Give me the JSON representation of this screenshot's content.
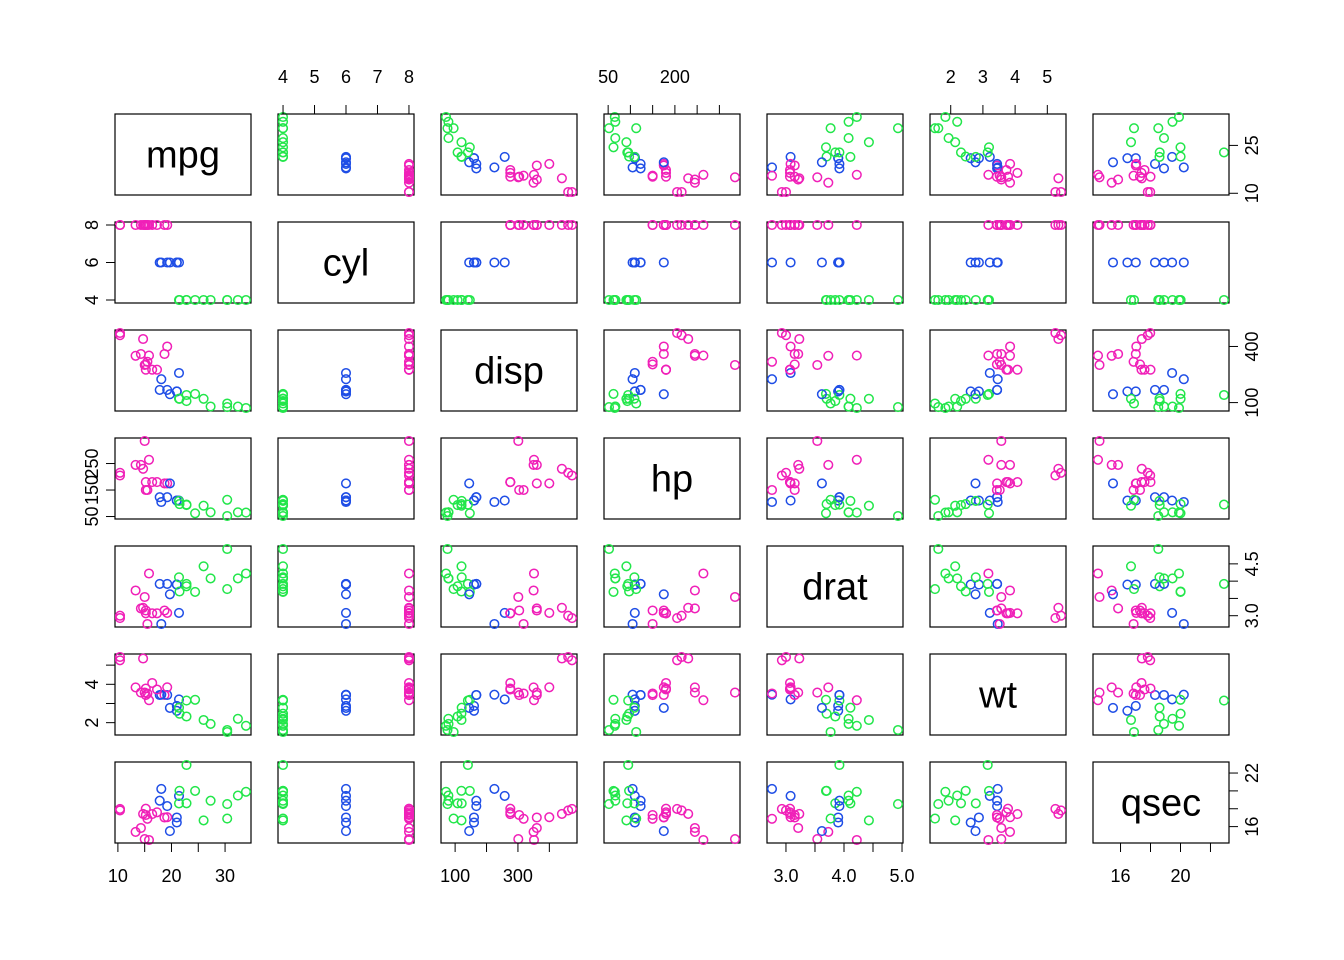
{
  "chart_data": {
    "type": "scatter",
    "subtype": "pairs",
    "grid": false,
    "legend": "none",
    "point_shape": "open-circle",
    "group_field": "cyl",
    "group_colors": {
      "4": "#22e64a",
      "6": "#1f4ee6",
      "8": "#f020b8"
    },
    "variables": [
      {
        "name": "mpg",
        "range": [
          10.4,
          33.9
        ],
        "ticks": [
          10,
          15,
          20,
          25,
          30
        ],
        "tick_labels": [
          "10",
          "",
          "20",
          "",
          "30"
        ],
        "alt_ticks": [
          10,
          25
        ],
        "alt_tick_labels": [
          "10",
          "25"
        ]
      },
      {
        "name": "cyl",
        "range": [
          4,
          8
        ],
        "ticks": [
          4,
          5,
          6,
          7,
          8
        ],
        "tick_labels": [
          "4",
          "5",
          "6",
          "7",
          "8"
        ],
        "alt_ticks": [
          4,
          6,
          8
        ],
        "alt_tick_labels": [
          "4",
          "6",
          "8"
        ]
      },
      {
        "name": "disp",
        "range": [
          71.1,
          472
        ],
        "ticks": [
          100,
          200,
          300,
          400
        ],
        "tick_labels": [
          "100",
          "",
          "300",
          ""
        ],
        "alt_ticks": [
          100,
          400
        ],
        "alt_tick_labels": [
          "100",
          "400"
        ]
      },
      {
        "name": "hp",
        "range": [
          52,
          335
        ],
        "ticks": [
          50,
          100,
          150,
          200,
          250,
          300
        ],
        "tick_labels": [
          "50",
          "",
          "",
          "200",
          "",
          ""
        ],
        "alt_ticks": [
          50,
          150,
          250
        ],
        "alt_tick_labels": [
          "50",
          "150",
          "250"
        ]
      },
      {
        "name": "drat",
        "range": [
          2.76,
          4.93
        ],
        "ticks": [
          3.0,
          3.5,
          4.0,
          4.5,
          5.0
        ],
        "tick_labels": [
          "3.0",
          "",
          "4.0",
          "",
          "5.0"
        ],
        "alt_ticks": [
          3.0,
          3.5,
          4.0,
          4.5
        ],
        "alt_tick_labels": [
          "3.0",
          "",
          "",
          "4.5"
        ]
      },
      {
        "name": "wt",
        "range": [
          1.513,
          5.424
        ],
        "ticks": [
          2,
          3,
          4,
          5
        ],
        "tick_labels": [
          "2",
          "3",
          "4",
          "5"
        ],
        "alt_ticks": [
          2,
          3,
          4,
          5
        ],
        "alt_tick_labels": [
          "2",
          "",
          "4",
          ""
        ]
      },
      {
        "name": "qsec",
        "range": [
          14.5,
          22.9
        ],
        "ticks": [
          16,
          18,
          20,
          22
        ],
        "tick_labels": [
          "16",
          "",
          "20",
          ""
        ],
        "alt_ticks": [
          16,
          18,
          20,
          22
        ],
        "alt_tick_labels": [
          "16",
          "",
          "",
          "22"
        ]
      }
    ],
    "rows": [
      [
        21.0,
        6,
        160.0,
        110,
        3.9,
        2.62,
        16.46
      ],
      [
        21.0,
        6,
        160.0,
        110,
        3.9,
        2.875,
        17.02
      ],
      [
        22.8,
        4,
        108.0,
        93,
        3.85,
        2.32,
        18.61
      ],
      [
        21.4,
        6,
        258.0,
        110,
        3.08,
        3.215,
        19.44
      ],
      [
        18.7,
        8,
        360.0,
        175,
        3.15,
        3.44,
        17.02
      ],
      [
        18.1,
        6,
        225.0,
        105,
        2.76,
        3.46,
        20.22
      ],
      [
        14.3,
        8,
        360.0,
        245,
        3.21,
        3.57,
        15.84
      ],
      [
        24.4,
        4,
        146.7,
        62,
        3.69,
        3.19,
        20.0
      ],
      [
        22.8,
        4,
        140.8,
        95,
        3.92,
        3.15,
        22.9
      ],
      [
        19.2,
        6,
        167.6,
        123,
        3.92,
        3.44,
        18.3
      ],
      [
        17.8,
        6,
        167.6,
        123,
        3.92,
        3.44,
        18.9
      ],
      [
        16.4,
        8,
        275.8,
        180,
        3.07,
        4.07,
        17.4
      ],
      [
        17.3,
        8,
        275.8,
        180,
        3.07,
        3.73,
        17.6
      ],
      [
        15.2,
        8,
        275.8,
        180,
        3.07,
        3.78,
        18.0
      ],
      [
        10.4,
        8,
        472.0,
        205,
        2.93,
        5.25,
        17.98
      ],
      [
        10.4,
        8,
        460.0,
        215,
        3.0,
        5.424,
        17.82
      ],
      [
        14.7,
        8,
        440.0,
        230,
        3.23,
        5.345,
        17.42
      ],
      [
        32.4,
        4,
        78.7,
        66,
        4.08,
        2.2,
        19.47
      ],
      [
        30.4,
        4,
        75.7,
        52,
        4.93,
        1.615,
        18.52
      ],
      [
        33.9,
        4,
        71.1,
        65,
        4.22,
        1.835,
        19.9
      ],
      [
        21.5,
        4,
        120.1,
        97,
        3.7,
        2.465,
        20.01
      ],
      [
        15.5,
        8,
        318.0,
        150,
        2.76,
        3.52,
        16.87
      ],
      [
        15.2,
        8,
        304.0,
        150,
        3.15,
        3.435,
        17.3
      ],
      [
        13.3,
        8,
        350.0,
        245,
        3.73,
        3.84,
        15.41
      ],
      [
        19.2,
        8,
        400.0,
        175,
        3.08,
        3.845,
        17.05
      ],
      [
        27.3,
        4,
        79.0,
        66,
        4.08,
        1.935,
        18.9
      ],
      [
        26.0,
        4,
        120.3,
        91,
        4.43,
        2.14,
        16.7
      ],
      [
        30.4,
        4,
        95.1,
        113,
        3.77,
        1.513,
        16.9
      ],
      [
        15.8,
        8,
        351.0,
        264,
        4.22,
        3.17,
        14.5
      ],
      [
        19.7,
        6,
        145.0,
        175,
        3.62,
        2.77,
        15.5
      ],
      [
        15.0,
        8,
        301.0,
        335,
        3.54,
        3.57,
        14.6
      ],
      [
        21.4,
        4,
        121.0,
        109,
        4.11,
        2.78,
        18.6
      ]
    ]
  }
}
